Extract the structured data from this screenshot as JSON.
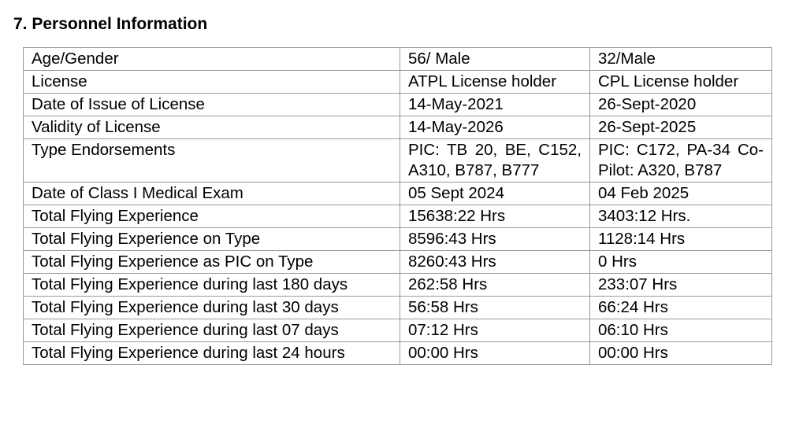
{
  "section": {
    "title": "7. Personnel Information"
  },
  "rows": [
    {
      "label": "Age/Gender",
      "pilot1": "56/ Male",
      "pilot2": "32/Male"
    },
    {
      "label": "License",
      "pilot1": "ATPL License holder",
      "pilot2": "CPL License holder"
    },
    {
      "label": "Date of Issue of License",
      "pilot1": "14-May-2021",
      "pilot2": "26-Sept-2020"
    },
    {
      "label": "Validity of License",
      "pilot1": "14-May-2026",
      "pilot2": "26-Sept-2025"
    },
    {
      "label": "Type Endorsements",
      "pilot1": "PIC: TB 20, BE, C152, A310, B787, B777",
      "pilot2": "PIC: C172, PA-34 Co-Pilot: A320, B787"
    },
    {
      "label": "Date of Class I Medical Exam",
      "pilot1": "05 Sept 2024",
      "pilot2": "04 Feb 2025"
    },
    {
      "label": "Total Flying Experience",
      "pilot1": "15638:22 Hrs",
      "pilot2": "3403:12 Hrs."
    },
    {
      "label": "Total Flying Experience on Type",
      "pilot1": "8596:43 Hrs",
      "pilot2": "1128:14 Hrs"
    },
    {
      "label": "Total Flying Experience as PIC on Type",
      "pilot1": "8260:43 Hrs",
      "pilot2": "0 Hrs"
    },
    {
      "label": "Total Flying Experience during last 180 days",
      "pilot1": "262:58 Hrs",
      "pilot2": "233:07 Hrs"
    },
    {
      "label": "Total Flying Experience during last 30 days",
      "pilot1": "56:58 Hrs",
      "pilot2": "66:24 Hrs"
    },
    {
      "label": "Total Flying Experience during last 07 days",
      "pilot1": "07:12 Hrs",
      "pilot2": "06:10 Hrs"
    },
    {
      "label": "Total Flying Experience during last 24 hours",
      "pilot1": "00:00 Hrs",
      "pilot2": "00:00 Hrs"
    }
  ]
}
